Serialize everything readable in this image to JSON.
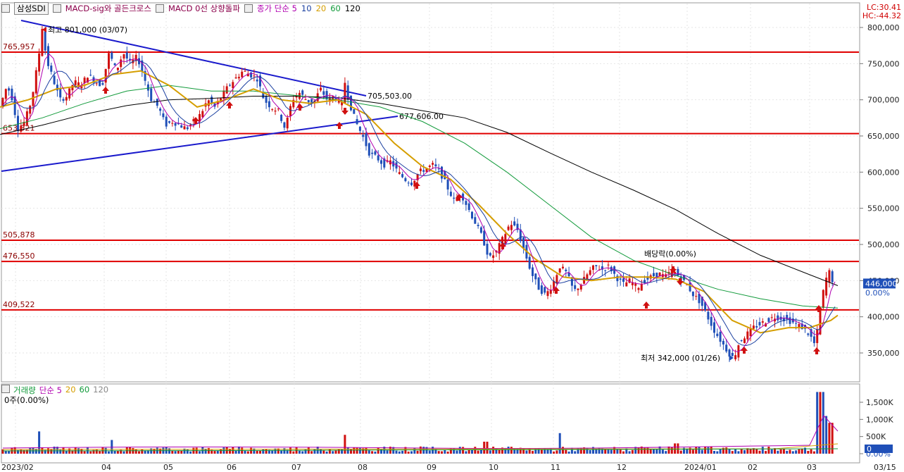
{
  "header": {
    "symbol": "삼성SDI",
    "indicator1": "MACD-sig와 골든크로스",
    "indicator2": "MACD 0선 상향돌파",
    "ma_label": "종가 단순 5",
    "ma_periods": [
      "10",
      "20",
      "60",
      "120"
    ]
  },
  "lc_hc": {
    "lc": "LC:30.41",
    "hc": "HC:-44.32"
  },
  "volume_header": {
    "label": "거래량",
    "ma_label": "단순 5",
    "ma_periods": [
      "20",
      "60",
      "120"
    ],
    "current": "0주(0.00%)"
  },
  "colors": {
    "up": "#d01010",
    "down": "#1f4fb8",
    "ma5": "#b000b0",
    "ma10": "#1a3fa0",
    "ma20": "#d59e00",
    "ma60": "#119a3a",
    "ma120": "#000000",
    "level_line": "#e00000",
    "trend_line": "#1a1acc"
  },
  "chart_data": {
    "type": "candlestick",
    "price_axis_ticks": [
      "800,000",
      "750,000",
      "700,000",
      "650,000",
      "600,000",
      "550,000",
      "500,000",
      "450,000",
      "400,000",
      "350,000"
    ],
    "volume_axis_ticks": [
      "1,500K",
      "1,000K",
      "500K",
      "0.00%"
    ],
    "x_ticks": [
      "2023/02",
      "04",
      "05",
      "06",
      "07",
      "08",
      "09",
      "10",
      "11",
      "12",
      "2024/01",
      "02",
      "03",
      "03/15"
    ],
    "current_price": "446,000",
    "current_pct": "0.00%",
    "current_volume": "0",
    "horizontal_levels": [
      {
        "label": "765,957",
        "value": 765957
      },
      {
        "label": "653,321",
        "value": 653321
      },
      {
        "label": "505,878",
        "value": 505878
      },
      {
        "label": "476,550",
        "value": 476550
      },
      {
        "label": "409,522",
        "value": 409522
      }
    ],
    "trend_lines": [
      {
        "label": "705,503.00",
        "value": 705503
      },
      {
        "label": "677,606.00",
        "value": 677606
      }
    ],
    "annotations": {
      "high": "최고 801,000 (03/07)",
      "low": "최저 342,000 (01/26)",
      "dividend": "배당락(0.00%)"
    },
    "ylim": [
      300000,
      830000
    ],
    "price_path": [
      [
        0,
        690000
      ],
      [
        10,
        720000
      ],
      [
        18,
        700000
      ],
      [
        25,
        660000
      ],
      [
        35,
        670000
      ],
      [
        45,
        700000
      ],
      [
        55,
        760000
      ],
      [
        60,
        801000
      ],
      [
        66,
        755000
      ],
      [
        75,
        730000
      ],
      [
        85,
        700000
      ],
      [
        95,
        705000
      ],
      [
        105,
        725000
      ],
      [
        115,
        720000
      ],
      [
        125,
        735000
      ],
      [
        135,
        725000
      ],
      [
        145,
        720000
      ],
      [
        155,
        765000
      ],
      [
        165,
        740000
      ],
      [
        175,
        765000
      ],
      [
        185,
        750000
      ],
      [
        195,
        760000
      ],
      [
        205,
        730000
      ],
      [
        215,
        700000
      ],
      [
        225,
        690000
      ],
      [
        235,
        665000
      ],
      [
        245,
        670000
      ],
      [
        255,
        665000
      ],
      [
        265,
        660000
      ],
      [
        275,
        670000
      ],
      [
        285,
        680000
      ],
      [
        295,
        700000
      ],
      [
        305,
        690000
      ],
      [
        315,
        705000
      ],
      [
        325,
        720000
      ],
      [
        335,
        730000
      ],
      [
        345,
        740000
      ],
      [
        355,
        735000
      ],
      [
        365,
        730000
      ],
      [
        375,
        700000
      ],
      [
        385,
        690000
      ],
      [
        395,
        685000
      ],
      [
        405,
        660000
      ],
      [
        415,
        700000
      ],
      [
        425,
        710000
      ],
      [
        435,
        700000
      ],
      [
        445,
        695000
      ],
      [
        455,
        715000
      ],
      [
        465,
        700000
      ],
      [
        475,
        705000
      ],
      [
        485,
        690000
      ],
      [
        490,
        725000
      ],
      [
        495,
        700000
      ],
      [
        505,
        670000
      ],
      [
        515,
        650000
      ],
      [
        525,
        625000
      ],
      [
        535,
        620000
      ],
      [
        545,
        610000
      ],
      [
        555,
        615000
      ],
      [
        565,
        600000
      ],
      [
        575,
        590000
      ],
      [
        585,
        585000
      ],
      [
        595,
        600000
      ],
      [
        605,
        605000
      ],
      [
        615,
        610000
      ],
      [
        625,
        600000
      ],
      [
        635,
        580000
      ],
      [
        645,
        560000
      ],
      [
        655,
        570000
      ],
      [
        665,
        550000
      ],
      [
        675,
        530000
      ],
      [
        685,
        510000
      ],
      [
        695,
        480000
      ],
      [
        705,
        490000
      ],
      [
        715,
        510000
      ],
      [
        725,
        530000
      ],
      [
        735,
        520000
      ],
      [
        745,
        490000
      ],
      [
        755,
        460000
      ],
      [
        765,
        440000
      ],
      [
        775,
        430000
      ],
      [
        785,
        445000
      ],
      [
        795,
        470000
      ],
      [
        805,
        460000
      ],
      [
        815,
        435000
      ],
      [
        825,
        445000
      ],
      [
        835,
        460000
      ],
      [
        845,
        470000
      ],
      [
        855,
        465000
      ],
      [
        865,
        470000
      ],
      [
        875,
        455000
      ],
      [
        885,
        445000
      ],
      [
        895,
        450000
      ],
      [
        905,
        440000
      ],
      [
        915,
        450000
      ],
      [
        925,
        455000
      ],
      [
        935,
        460000
      ],
      [
        945,
        455000
      ],
      [
        955,
        465000
      ],
      [
        965,
        455000
      ],
      [
        975,
        445000
      ],
      [
        985,
        430000
      ],
      [
        995,
        420000
      ],
      [
        1005,
        400000
      ],
      [
        1015,
        380000
      ],
      [
        1025,
        365000
      ],
      [
        1035,
        350000
      ],
      [
        1042,
        342000
      ],
      [
        1050,
        365000
      ],
      [
        1060,
        375000
      ],
      [
        1070,
        385000
      ],
      [
        1080,
        390000
      ],
      [
        1090,
        395000
      ],
      [
        1100,
        400000
      ],
      [
        1110,
        398000
      ],
      [
        1120,
        395000
      ],
      [
        1130,
        390000
      ],
      [
        1140,
        385000
      ],
      [
        1150,
        375000
      ],
      [
        1158,
        360000
      ],
      [
        1165,
        410000
      ],
      [
        1172,
        450000
      ],
      [
        1178,
        462000
      ],
      [
        1184,
        446000
      ]
    ],
    "ma20_path": [
      [
        0,
        690000
      ],
      [
        40,
        700000
      ],
      [
        80,
        715000
      ],
      [
        120,
        720000
      ],
      [
        160,
        735000
      ],
      [
        200,
        740000
      ],
      [
        240,
        720000
      ],
      [
        280,
        690000
      ],
      [
        320,
        700000
      ],
      [
        360,
        715000
      ],
      [
        400,
        700000
      ],
      [
        440,
        695000
      ],
      [
        480,
        700000
      ],
      [
        520,
        680000
      ],
      [
        560,
        640000
      ],
      [
        600,
        608000
      ],
      [
        640,
        590000
      ],
      [
        680,
        555000
      ],
      [
        720,
        515000
      ],
      [
        760,
        480000
      ],
      [
        800,
        455000
      ],
      [
        840,
        450000
      ],
      [
        880,
        455000
      ],
      [
        920,
        455000
      ],
      [
        960,
        452000
      ],
      [
        1000,
        435000
      ],
      [
        1040,
        395000
      ],
      [
        1080,
        378000
      ],
      [
        1120,
        385000
      ],
      [
        1150,
        385000
      ],
      [
        1180,
        395000
      ],
      [
        1190,
        402000
      ]
    ],
    "ma60_path": [
      [
        0,
        660000
      ],
      [
        60,
        675000
      ],
      [
        120,
        695000
      ],
      [
        180,
        712000
      ],
      [
        240,
        720000
      ],
      [
        300,
        712000
      ],
      [
        360,
        712000
      ],
      [
        420,
        706000
      ],
      [
        480,
        700000
      ],
      [
        540,
        690000
      ],
      [
        600,
        670000
      ],
      [
        660,
        640000
      ],
      [
        720,
        600000
      ],
      [
        780,
        555000
      ],
      [
        840,
        510000
      ],
      [
        900,
        478000
      ],
      [
        960,
        457000
      ],
      [
        1020,
        438000
      ],
      [
        1080,
        425000
      ],
      [
        1140,
        415000
      ],
      [
        1190,
        412000
      ]
    ],
    "ma120_path": [
      [
        0,
        652000
      ],
      [
        60,
        665000
      ],
      [
        120,
        680000
      ],
      [
        180,
        692000
      ],
      [
        240,
        700000
      ],
      [
        300,
        702000
      ],
      [
        360,
        705000
      ],
      [
        420,
        705000
      ],
      [
        480,
        703000
      ],
      [
        540,
        695000
      ],
      [
        600,
        685000
      ],
      [
        660,
        675000
      ],
      [
        720,
        655000
      ],
      [
        780,
        627000
      ],
      [
        840,
        600000
      ],
      [
        900,
        575000
      ],
      [
        960,
        548000
      ],
      [
        1020,
        515000
      ],
      [
        1080,
        485000
      ],
      [
        1140,
        462000
      ],
      [
        1190,
        443000
      ]
    ],
    "volume_spikes": [
      {
        "x": 55,
        "v": 650
      },
      {
        "x": 160,
        "v": 400
      },
      {
        "x": 490,
        "v": 550
      },
      {
        "x": 690,
        "v": 350
      },
      {
        "x": 795,
        "v": 600
      },
      {
        "x": 960,
        "v": 300
      },
      {
        "x": 1162,
        "v": 1800
      },
      {
        "x": 1167,
        "v": 1800
      },
      {
        "x": 1174,
        "v": 1100
      },
      {
        "x": 1180,
        "v": 900
      }
    ]
  }
}
